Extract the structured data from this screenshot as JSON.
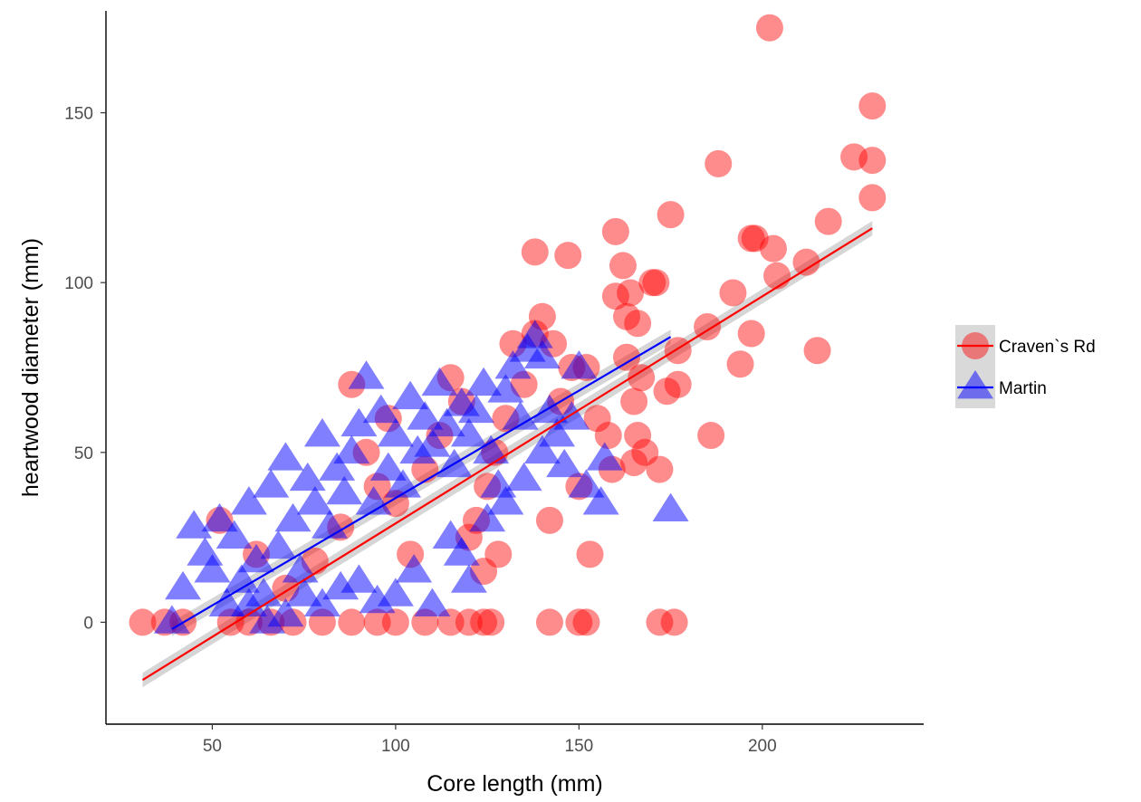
{
  "chart_data": {
    "type": "scatter",
    "xlabel": "Core length (mm)",
    "ylabel": "heartwood diameter (mm)",
    "xlim": [
      21,
      244
    ],
    "ylim": [
      -30,
      180
    ],
    "x_ticks": [
      50,
      100,
      150,
      200
    ],
    "y_ticks": [
      0,
      50,
      100,
      150
    ],
    "grid": false,
    "legend_position": "right",
    "series": [
      {
        "name": "Craven`s Rd",
        "marker": "circle",
        "color": "#ff0000",
        "fit": {
          "x": [
            31,
            230
          ],
          "y": [
            -17,
            116
          ]
        },
        "points": [
          [
            31,
            0
          ],
          [
            37,
            0
          ],
          [
            42,
            0
          ],
          [
            55,
            0
          ],
          [
            60,
            0
          ],
          [
            66,
            0
          ],
          [
            72,
            0
          ],
          [
            80,
            0
          ],
          [
            88,
            0
          ],
          [
            95,
            0
          ],
          [
            100,
            0
          ],
          [
            108,
            0
          ],
          [
            115,
            0
          ],
          [
            120,
            0
          ],
          [
            124,
            0
          ],
          [
            126,
            0
          ],
          [
            142,
            0
          ],
          [
            150,
            0
          ],
          [
            152,
            0
          ],
          [
            172,
            0
          ],
          [
            176,
            0
          ],
          [
            52,
            30
          ],
          [
            62,
            20
          ],
          [
            70,
            10
          ],
          [
            78,
            18
          ],
          [
            85,
            28
          ],
          [
            88,
            70
          ],
          [
            92,
            50
          ],
          [
            95,
            40
          ],
          [
            98,
            60
          ],
          [
            100,
            35
          ],
          [
            104,
            20
          ],
          [
            108,
            45
          ],
          [
            112,
            55
          ],
          [
            115,
            72
          ],
          [
            118,
            65
          ],
          [
            120,
            25
          ],
          [
            122,
            30
          ],
          [
            124,
            15
          ],
          [
            125,
            40
          ],
          [
            127,
            50
          ],
          [
            128,
            20
          ],
          [
            130,
            60
          ],
          [
            132,
            82
          ],
          [
            135,
            70
          ],
          [
            138,
            85
          ],
          [
            140,
            90
          ],
          [
            142,
            30
          ],
          [
            143,
            82
          ],
          [
            145,
            65
          ],
          [
            148,
            75
          ],
          [
            150,
            40
          ],
          [
            152,
            75
          ],
          [
            153,
            20
          ],
          [
            155,
            60
          ],
          [
            158,
            55
          ],
          [
            159,
            45
          ],
          [
            160,
            96
          ],
          [
            160,
            115
          ],
          [
            162,
            105
          ],
          [
            163,
            78
          ],
          [
            163,
            90
          ],
          [
            164,
            97
          ],
          [
            165,
            65
          ],
          [
            165,
            47
          ],
          [
            166,
            88
          ],
          [
            166,
            55
          ],
          [
            167,
            72
          ],
          [
            168,
            50
          ],
          [
            170,
            100
          ],
          [
            171,
            100
          ],
          [
            172,
            45
          ],
          [
            174,
            68
          ],
          [
            175,
            120
          ],
          [
            177,
            70
          ],
          [
            177,
            80
          ],
          [
            185,
            87
          ],
          [
            186,
            55
          ],
          [
            188,
            135
          ],
          [
            192,
            97
          ],
          [
            194,
            76
          ],
          [
            197,
            113
          ],
          [
            197,
            85
          ],
          [
            198,
            113
          ],
          [
            202,
            175
          ],
          [
            203,
            110
          ],
          [
            204,
            102
          ],
          [
            212,
            106
          ],
          [
            215,
            80
          ],
          [
            218,
            118
          ],
          [
            225,
            137
          ],
          [
            230,
            152
          ],
          [
            230,
            136
          ],
          [
            230,
            125
          ],
          [
            138,
            109
          ],
          [
            147,
            108
          ]
        ]
      },
      {
        "name": "Martin",
        "marker": "triangle",
        "color": "#0000ff",
        "fit": {
          "x": [
            39,
            175
          ],
          "y": [
            -2,
            84
          ]
        },
        "points": [
          [
            39,
            0
          ],
          [
            42,
            10
          ],
          [
            45,
            28
          ],
          [
            48,
            20
          ],
          [
            50,
            15
          ],
          [
            52,
            30
          ],
          [
            54,
            5
          ],
          [
            56,
            25
          ],
          [
            58,
            12
          ],
          [
            60,
            35
          ],
          [
            62,
            18
          ],
          [
            64,
            8
          ],
          [
            66,
            40
          ],
          [
            68,
            22
          ],
          [
            70,
            48
          ],
          [
            72,
            30
          ],
          [
            74,
            15
          ],
          [
            76,
            42
          ],
          [
            78,
            35
          ],
          [
            80,
            55
          ],
          [
            82,
            28
          ],
          [
            84,
            45
          ],
          [
            86,
            38
          ],
          [
            88,
            50
          ],
          [
            90,
            58
          ],
          [
            92,
            72
          ],
          [
            94,
            35
          ],
          [
            96,
            62
          ],
          [
            98,
            45
          ],
          [
            100,
            55
          ],
          [
            102,
            40
          ],
          [
            104,
            66
          ],
          [
            106,
            50
          ],
          [
            108,
            60
          ],
          [
            110,
            52
          ],
          [
            112,
            70
          ],
          [
            114,
            58
          ],
          [
            116,
            46
          ],
          [
            118,
            64
          ],
          [
            120,
            55
          ],
          [
            122,
            62
          ],
          [
            124,
            70
          ],
          [
            126,
            50
          ],
          [
            128,
            40
          ],
          [
            130,
            68
          ],
          [
            132,
            75
          ],
          [
            134,
            60
          ],
          [
            136,
            80
          ],
          [
            138,
            84
          ],
          [
            140,
            78
          ],
          [
            142,
            62
          ],
          [
            144,
            55
          ],
          [
            146,
            46
          ],
          [
            148,
            60
          ],
          [
            150,
            75
          ],
          [
            152,
            40
          ],
          [
            156,
            35
          ],
          [
            157,
            48
          ],
          [
            175,
            33
          ],
          [
            60,
            5
          ],
          [
            65,
            0
          ],
          [
            70,
            2
          ],
          [
            75,
            8
          ],
          [
            80,
            5
          ],
          [
            85,
            10
          ],
          [
            90,
            12
          ],
          [
            95,
            6
          ],
          [
            100,
            8
          ],
          [
            105,
            15
          ],
          [
            110,
            5
          ],
          [
            115,
            25
          ],
          [
            118,
            20
          ],
          [
            120,
            12
          ],
          [
            125,
            30
          ],
          [
            130,
            35
          ],
          [
            135,
            42
          ],
          [
            140,
            50
          ]
        ]
      }
    ]
  }
}
